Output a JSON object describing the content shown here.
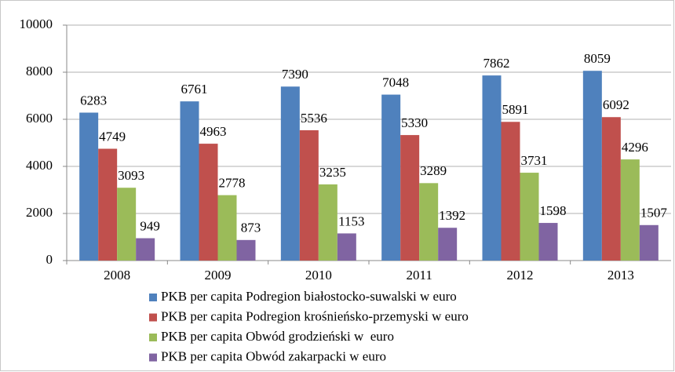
{
  "chart_data": {
    "type": "bar",
    "categories": [
      "2008",
      "2009",
      "2010",
      "2011",
      "2012",
      "2013"
    ],
    "series": [
      {
        "name": "PKB per capita Podregion białostocko-suwalski w euro",
        "color": "#4f81bd",
        "values": [
          6283,
          6761,
          7390,
          7048,
          7862,
          8059
        ]
      },
      {
        "name": "PKB per capita Podregion krośnieńsko-przemyski w euro",
        "color": "#c0504d",
        "values": [
          4749,
          4963,
          5536,
          5330,
          5891,
          6092
        ]
      },
      {
        "name": "PKB per capita Obwód grodzieński w  euro",
        "color": "#9bbb59",
        "values": [
          3093,
          2778,
          3235,
          3289,
          3731,
          4296
        ]
      },
      {
        "name": "PKB per capita Obwód zakarpacki w euro",
        "color": "#8064a2",
        "values": [
          949,
          873,
          1153,
          1392,
          1598,
          1507
        ]
      }
    ],
    "ylim": [
      0,
      10000
    ],
    "yticks": [
      0,
      2000,
      4000,
      6000,
      8000,
      10000
    ],
    "grid": true,
    "legend": "bottom"
  }
}
